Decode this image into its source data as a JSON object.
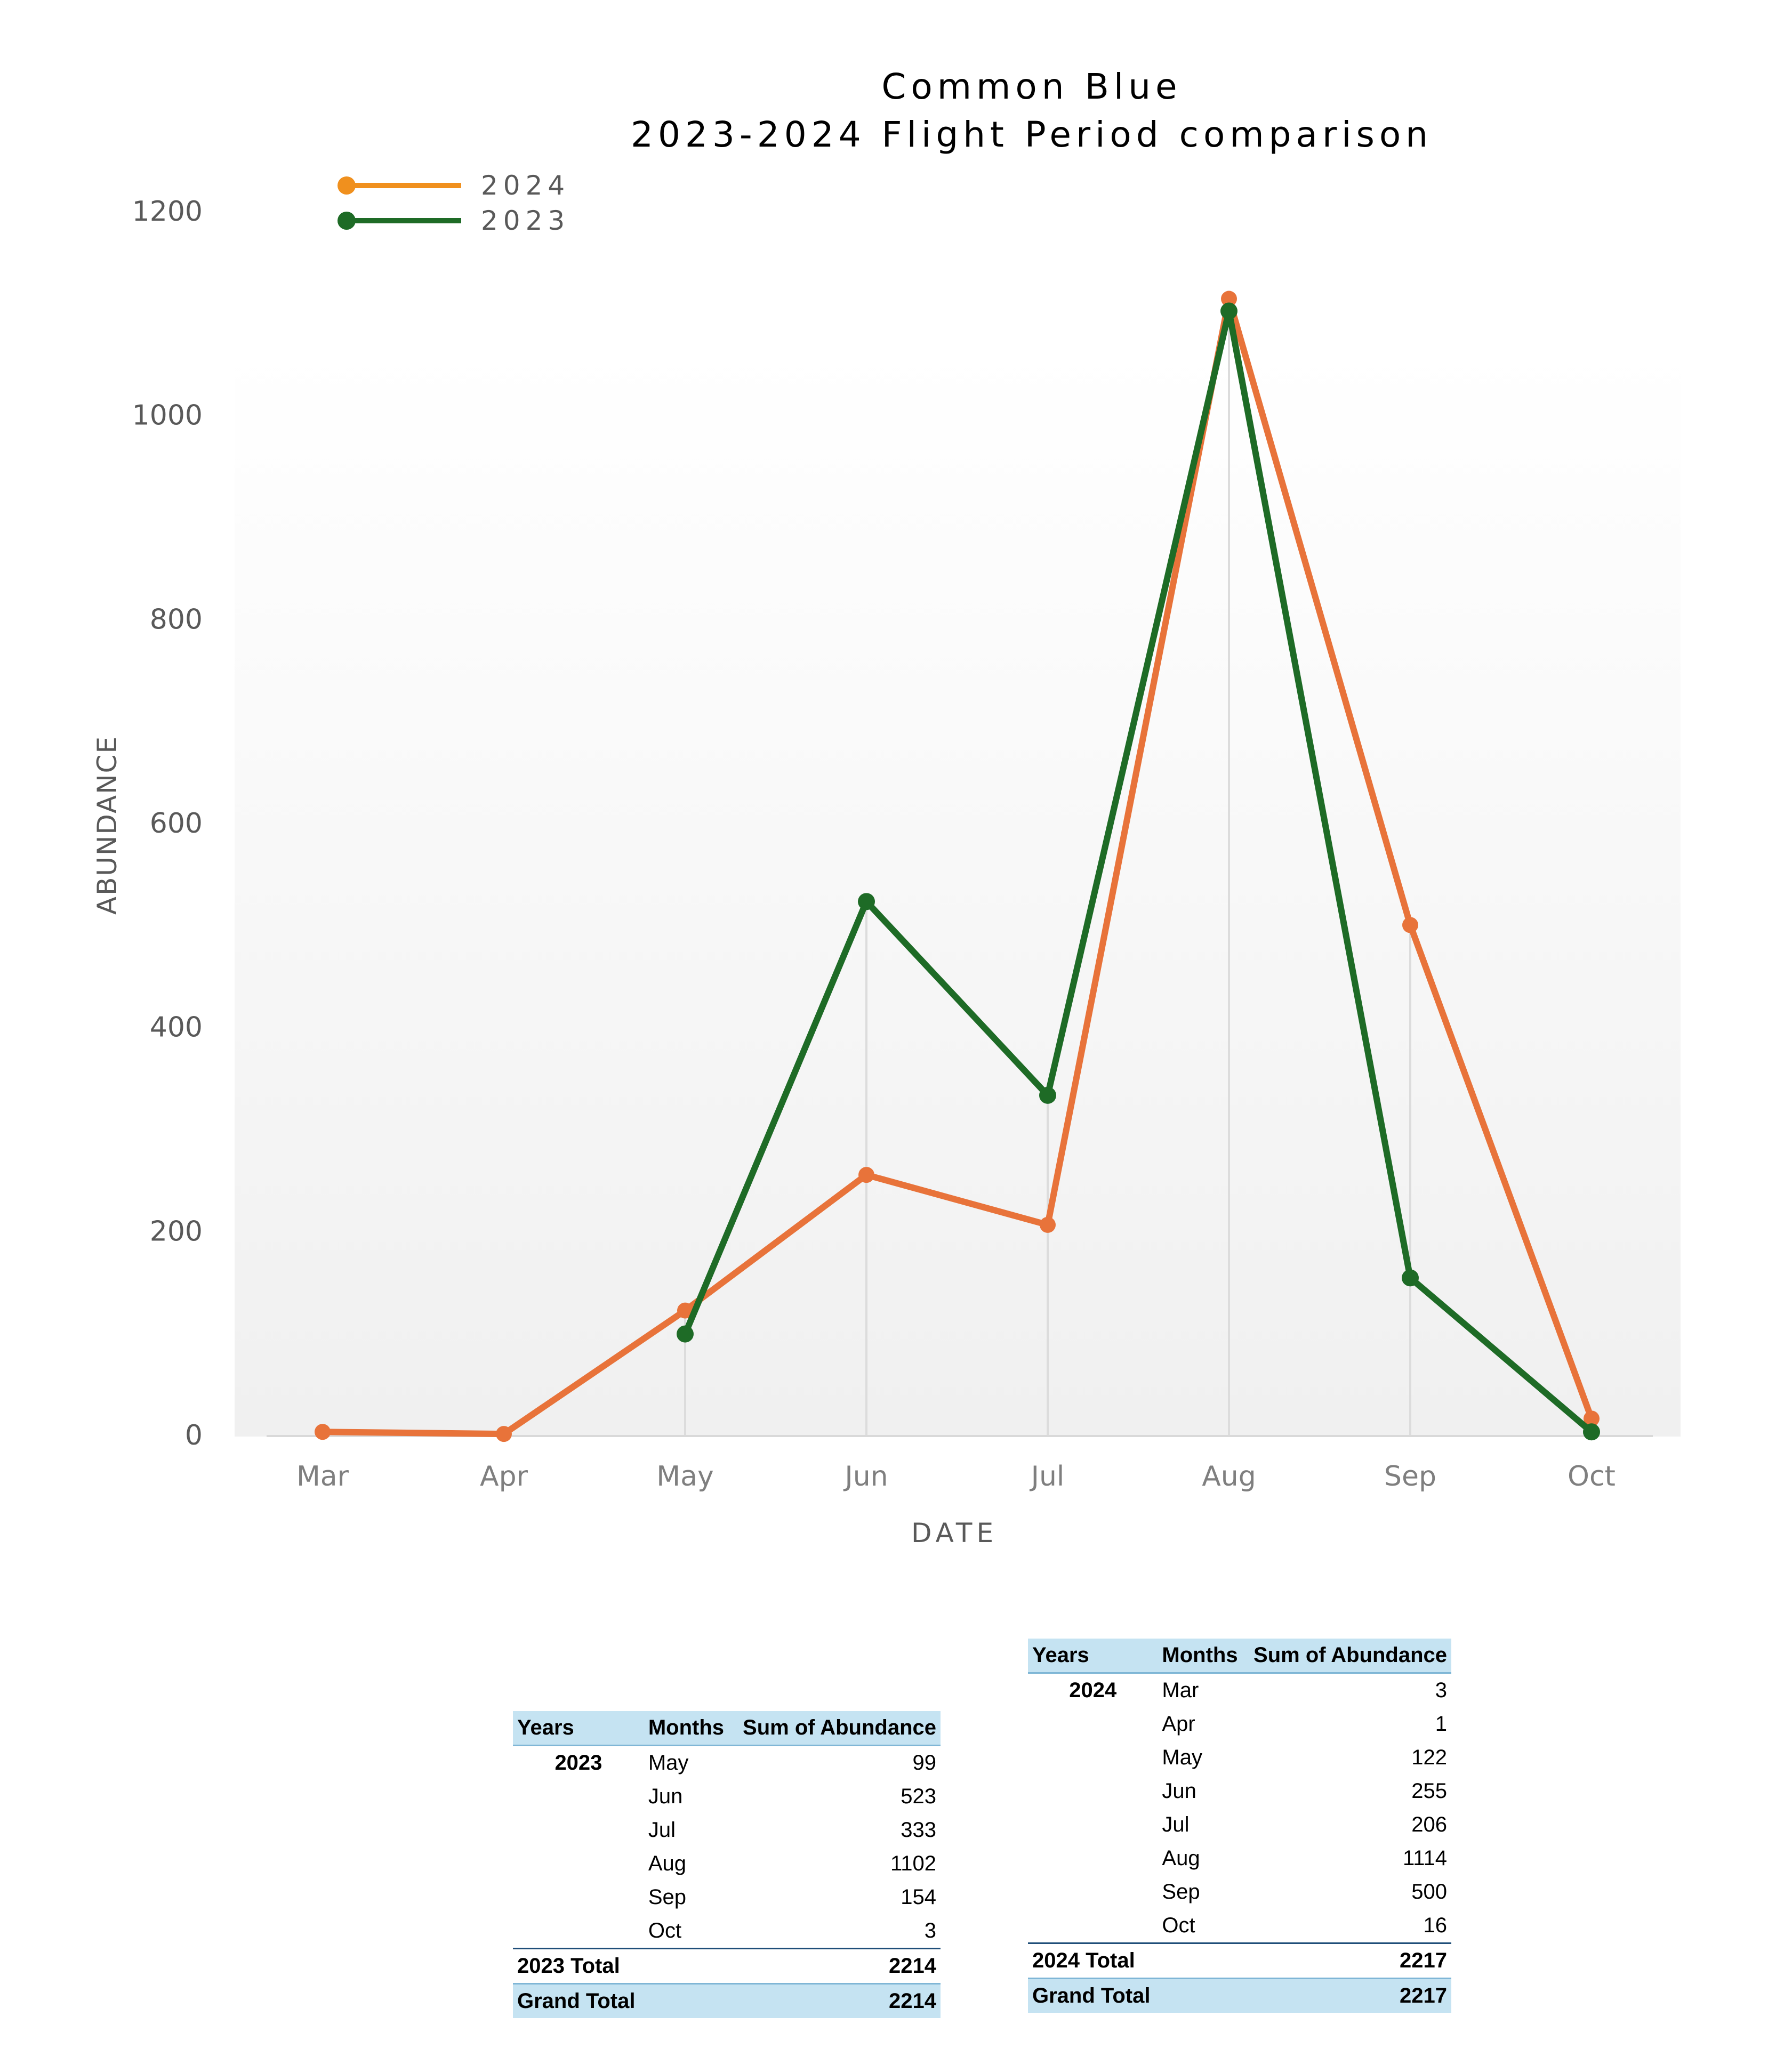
{
  "chart_data": {
    "type": "line",
    "title": [
      "Common Blue",
      "2023-2024 Flight Period comparison"
    ],
    "xlabel": "DATE",
    "ylabel": "ABUNDANCE",
    "categories": [
      "Mar",
      "Apr",
      "May",
      "Jun",
      "Jul",
      "Aug",
      "Sep",
      "Oct"
    ],
    "ylim": [
      0,
      1200
    ],
    "yticks": [
      0,
      200,
      400,
      600,
      800,
      1000,
      1200
    ],
    "legend_position": "top-left",
    "series": [
      {
        "name": "2024",
        "color": "#e8733a",
        "legend_color": "#f0901e",
        "values": [
          3,
          1,
          122,
          255,
          206,
          1114,
          500,
          16
        ]
      },
      {
        "name": "2023",
        "color": "#1e6b26",
        "legend_color": "#1e6b26",
        "values": [
          null,
          null,
          99,
          523,
          333,
          1102,
          154,
          3
        ]
      }
    ]
  },
  "tables": {
    "t2023": {
      "headers": {
        "years": "Years",
        "months": "Months",
        "sum": "Sum of Abundance"
      },
      "year": "2023",
      "rows": [
        {
          "month": "May",
          "value": "99"
        },
        {
          "month": "Jun",
          "value": "523"
        },
        {
          "month": "Jul",
          "value": "333"
        },
        {
          "month": "Aug",
          "value": "1102"
        },
        {
          "month": "Sep",
          "value": "154"
        },
        {
          "month": "Oct",
          "value": "3"
        }
      ],
      "total_label": "2023 Total",
      "total_value": "2214",
      "grand_label": "Grand Total",
      "grand_value": "2214"
    },
    "t2024": {
      "headers": {
        "years": "Years",
        "months": "Months",
        "sum": "Sum of Abundance"
      },
      "year": "2024",
      "rows": [
        {
          "month": "Mar",
          "value": "3"
        },
        {
          "month": "Apr",
          "value": "1"
        },
        {
          "month": "May",
          "value": "122"
        },
        {
          "month": "Jun",
          "value": "255"
        },
        {
          "month": "Jul",
          "value": "206"
        },
        {
          "month": "Aug",
          "value": "1114"
        },
        {
          "month": "Sep",
          "value": "500"
        },
        {
          "month": "Oct",
          "value": "16"
        }
      ],
      "total_label": "2024 Total",
      "total_value": "2217",
      "grand_label": "Grand Total",
      "grand_value": "2217"
    }
  }
}
